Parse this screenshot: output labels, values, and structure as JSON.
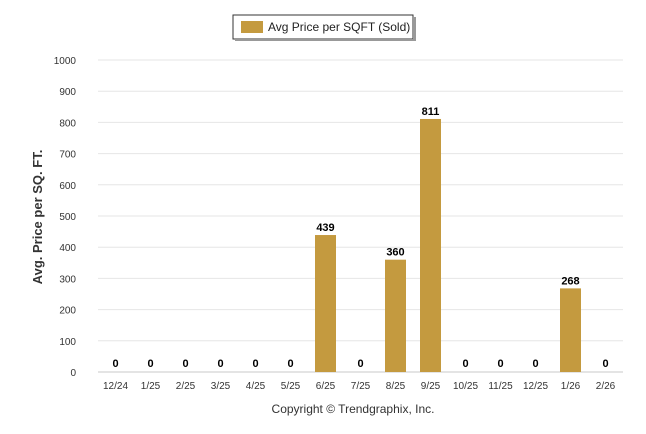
{
  "chart_data": {
    "type": "bar",
    "categories": [
      "12/24",
      "1/25",
      "2/25",
      "3/25",
      "4/25",
      "5/25",
      "6/25",
      "7/25",
      "8/25",
      "9/25",
      "10/25",
      "11/25",
      "12/25",
      "1/26",
      "2/26"
    ],
    "series": [
      {
        "name": "Avg Price per SQFT (Sold)",
        "values": [
          0,
          0,
          0,
          0,
          0,
          0,
          439,
          0,
          360,
          811,
          0,
          0,
          0,
          268,
          0
        ],
        "color": "#C49A3F"
      }
    ],
    "ylabel": "Avg. Price per SQ. FT.",
    "xlabel": "",
    "ylim": [
      0,
      1000
    ],
    "yticks": [
      0,
      100,
      200,
      300,
      400,
      500,
      600,
      700,
      800,
      900,
      1000
    ],
    "grid": true,
    "legend_position": "top-center",
    "data_labels": [
      "0",
      "0",
      "0",
      "0",
      "0",
      "0",
      "439",
      "0",
      "360",
      "811",
      "0",
      "0",
      "0",
      "268",
      "0"
    ]
  },
  "footer": {
    "copyright": "Copyright © Trendgraphix, Inc."
  }
}
